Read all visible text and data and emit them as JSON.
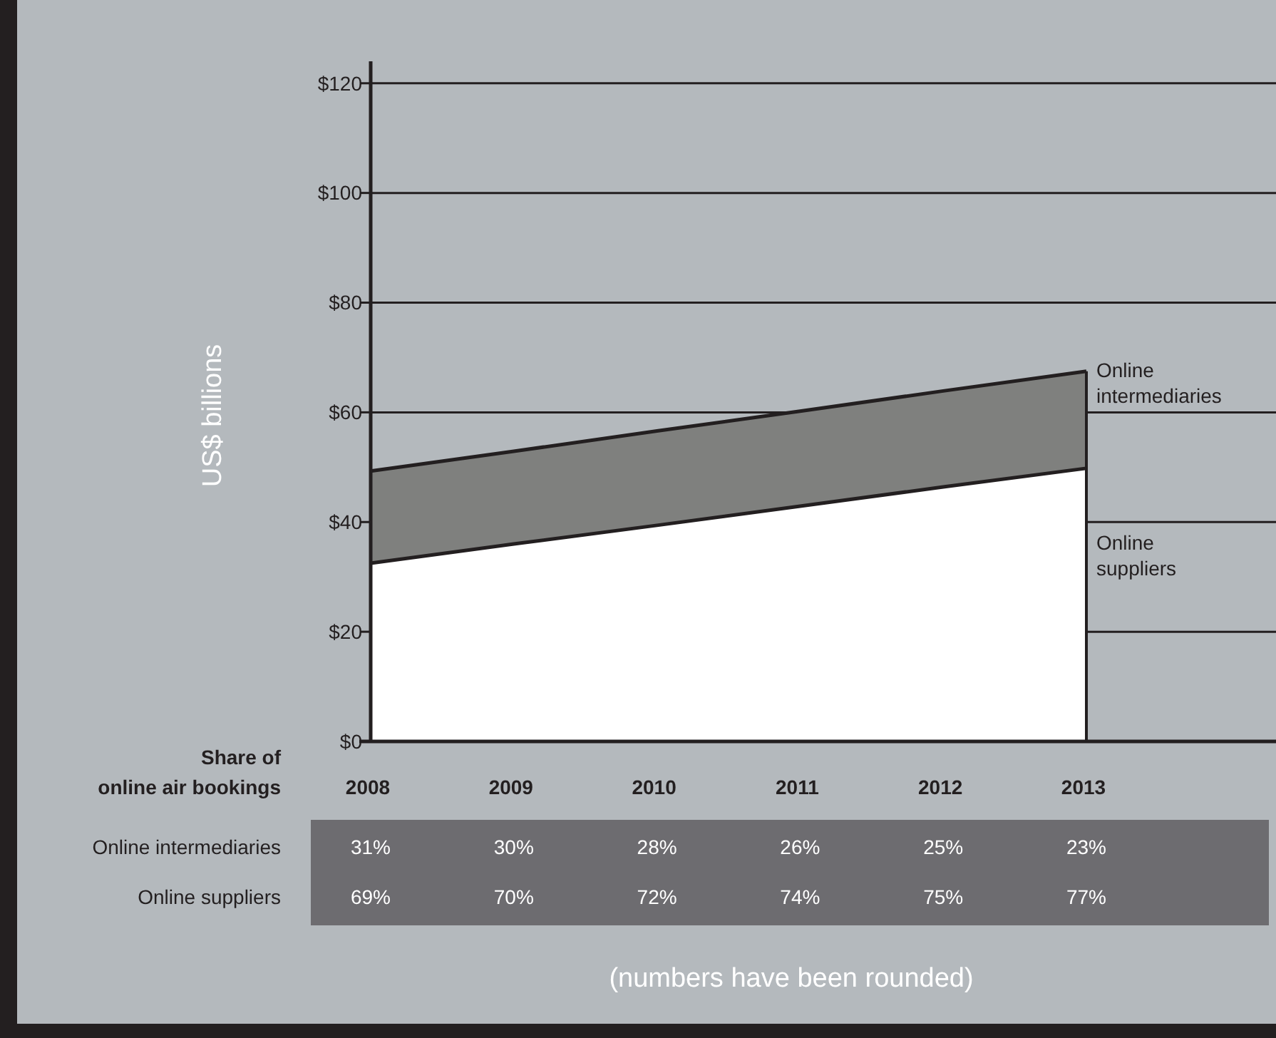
{
  "chart_data": {
    "type": "area",
    "stacked": true,
    "ylabel": "US$ billions",
    "categories": [
      "2008",
      "2009",
      "2010",
      "2011",
      "2012",
      "2013"
    ],
    "series": [
      {
        "name": "Online suppliers",
        "color": "#ffffff",
        "values": [
          32.5,
          36,
          39.4,
          42.9,
          46.4,
          49.8
        ]
      },
      {
        "name": "Online intermediaries",
        "color": "#7f807e",
        "values": [
          16.8,
          16.9,
          17.2,
          17.3,
          17.5,
          17.7
        ]
      }
    ],
    "ylim": [
      0,
      124
    ],
    "yticks": [
      {
        "value": 0,
        "label": "$0"
      },
      {
        "value": 20,
        "label": "$20"
      },
      {
        "value": 40,
        "label": "$40"
      },
      {
        "value": 60,
        "label": "$60"
      },
      {
        "value": 80,
        "label": "$80"
      },
      {
        "value": 100,
        "label": "$100"
      },
      {
        "value": 120,
        "label": "$120"
      }
    ],
    "grid": "y",
    "annotations": [
      "Share of\nonline air bookings",
      "31%",
      "30%",
      "28%",
      "26%",
      "25%",
      "23%",
      "69%",
      "70%",
      "72%",
      "74%",
      "75%",
      "77%",
      "(numbers have been rounded)"
    ]
  }
}
